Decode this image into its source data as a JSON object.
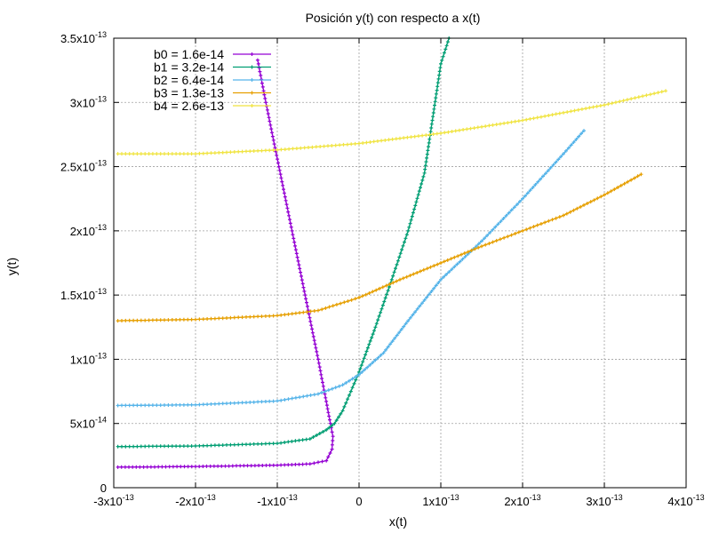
{
  "chart_data": {
    "type": "line",
    "title": "Posición y(t) con respecto a x(t)",
    "xlabel": "x(t)",
    "ylabel": "y(t)",
    "xlim": [
      -3e-13,
      4e-13
    ],
    "ylim": [
      0,
      3.5e-13
    ],
    "grid": true,
    "legend_position": "top-left",
    "x_ticks": [
      {
        "value": -3e-13,
        "mant": "-3x10",
        "exp": "-13"
      },
      {
        "value": -2e-13,
        "mant": "-2x10",
        "exp": "-13"
      },
      {
        "value": -1e-13,
        "mant": "-1x10",
        "exp": "-13"
      },
      {
        "value": 0,
        "mant": "0",
        "exp": ""
      },
      {
        "value": 1e-13,
        "mant": "1x10",
        "exp": "-13"
      },
      {
        "value": 2e-13,
        "mant": "2x10",
        "exp": "-13"
      },
      {
        "value": 3e-13,
        "mant": "3x10",
        "exp": "-13"
      },
      {
        "value": 4e-13,
        "mant": "4x10",
        "exp": "-13"
      }
    ],
    "y_ticks": [
      {
        "value": 0,
        "mant": "0",
        "exp": ""
      },
      {
        "value": 5e-14,
        "mant": "5x10",
        "exp": "-14"
      },
      {
        "value": 1e-13,
        "mant": "1x10",
        "exp": "-13"
      },
      {
        "value": 1.5e-13,
        "mant": "1.5x10",
        "exp": "-13"
      },
      {
        "value": 2e-13,
        "mant": "2x10",
        "exp": "-13"
      },
      {
        "value": 2.5e-13,
        "mant": "2.5x10",
        "exp": "-13"
      },
      {
        "value": 3e-13,
        "mant": "3x10",
        "exp": "-13"
      },
      {
        "value": 3.5e-13,
        "mant": "3.5x10",
        "exp": "-13"
      }
    ],
    "series": [
      {
        "name": "b0 = 1.6e-14",
        "color": "#9400d3",
        "points": [
          [
            -2.95e-13,
            1.6e-14
          ],
          [
            -2.5e-13,
            1.62e-14
          ],
          [
            -2e-13,
            1.65e-14
          ],
          [
            -1.5e-13,
            1.7e-14
          ],
          [
            -1e-13,
            1.75e-14
          ],
          [
            -6e-14,
            1.85e-14
          ],
          [
            -4e-14,
            2.1e-14
          ],
          [
            -3.3e-14,
            3e-14
          ],
          [
            -3.2e-14,
            4e-14
          ],
          [
            -3.5e-14,
            5e-14
          ],
          [
            -4.1e-14,
            7e-14
          ],
          [
            -5e-14,
            1e-13
          ],
          [
            -6.6e-14,
            1.5e-13
          ],
          [
            -8.2e-14,
            2e-13
          ],
          [
            -9.8e-14,
            2.5e-13
          ],
          [
            -1.14e-13,
            3e-13
          ],
          [
            -1.24e-13,
            3.33e-13
          ]
        ]
      },
      {
        "name": "b1 = 3.2e-14",
        "color": "#009e73",
        "points": [
          [
            -2.95e-13,
            3.2e-14
          ],
          [
            -2e-13,
            3.25e-14
          ],
          [
            -1e-13,
            3.45e-14
          ],
          [
            -6e-14,
            3.8e-14
          ],
          [
            -4e-14,
            4.5e-14
          ],
          [
            -3e-14,
            5e-14
          ],
          [
            -2e-14,
            6e-14
          ],
          [
            -1e-14,
            7.5e-14
          ],
          [
            0,
            9e-14
          ],
          [
            2e-14,
            1.25e-13
          ],
          [
            4e-14,
            1.62e-13
          ],
          [
            6e-14,
            2e-13
          ],
          [
            8e-14,
            2.45e-13
          ],
          [
            1e-13,
            3.3e-13
          ],
          [
            1.1e-13,
            3.5e-13
          ]
        ]
      },
      {
        "name": "b2 = 6.4e-14",
        "color": "#56b4e9",
        "points": [
          [
            -2.95e-13,
            6.4e-14
          ],
          [
            -2e-13,
            6.45e-14
          ],
          [
            -1e-13,
            6.75e-14
          ],
          [
            -5e-14,
            7.3e-14
          ],
          [
            -2e-14,
            8e-14
          ],
          [
            0,
            8.8e-14
          ],
          [
            3e-14,
            1.05e-13
          ],
          [
            6e-14,
            1.3e-13
          ],
          [
            1e-13,
            1.62e-13
          ],
          [
            1.5e-13,
            1.92e-13
          ],
          [
            2e-13,
            2.25e-13
          ],
          [
            2.5e-13,
            2.6e-13
          ],
          [
            2.75e-13,
            2.78e-13
          ]
        ]
      },
      {
        "name": "b3 = 1.3e-13",
        "color": "#e69f00",
        "points": [
          [
            -2.95e-13,
            1.3e-13
          ],
          [
            -2e-13,
            1.31e-13
          ],
          [
            -1e-13,
            1.34e-13
          ],
          [
            -5e-14,
            1.38e-13
          ],
          [
            0,
            1.48e-13
          ],
          [
            5e-14,
            1.62e-13
          ],
          [
            1e-13,
            1.75e-13
          ],
          [
            1.5e-13,
            1.88e-13
          ],
          [
            2e-13,
            2e-13
          ],
          [
            2.5e-13,
            2.12e-13
          ],
          [
            3e-13,
            2.28e-13
          ],
          [
            3.45e-13,
            2.44e-13
          ]
        ]
      },
      {
        "name": "b4 = 2.6e-13",
        "color": "#f0e442",
        "points": [
          [
            -2.95e-13,
            2.6e-13
          ],
          [
            -2e-13,
            2.6e-13
          ],
          [
            -1e-13,
            2.63e-13
          ],
          [
            0,
            2.68e-13
          ],
          [
            1e-13,
            2.76e-13
          ],
          [
            2e-13,
            2.86e-13
          ],
          [
            3e-13,
            2.98e-13
          ],
          [
            3.75e-13,
            3.09e-13
          ]
        ]
      }
    ]
  }
}
